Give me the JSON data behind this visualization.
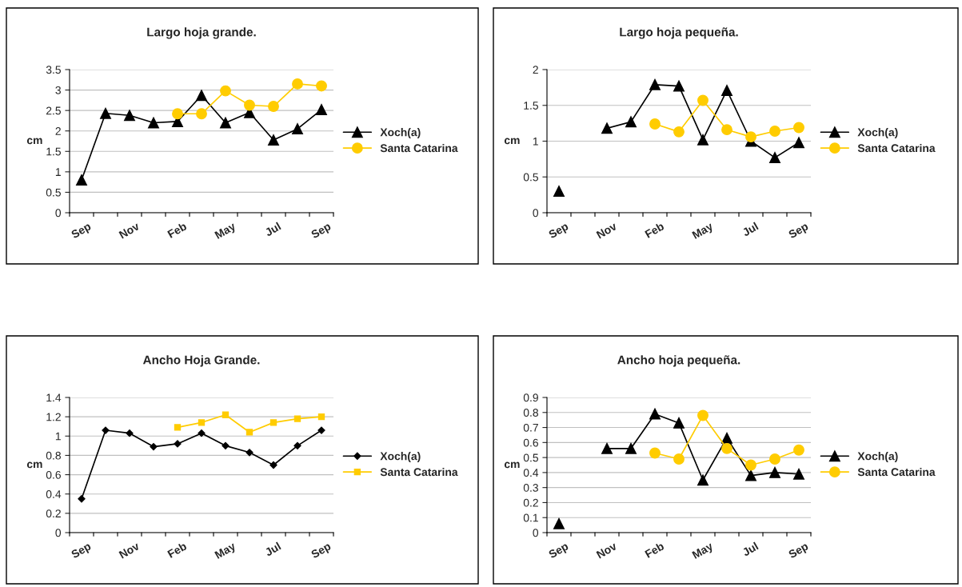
{
  "chart_data": [
    {
      "type": "line",
      "title": "Largo hoja grande.",
      "ylabel": "cm",
      "categories": [
        "Sep",
        null,
        "Nov",
        null,
        "Feb",
        null,
        "May",
        null,
        "Jul",
        null,
        "Sep"
      ],
      "ylim": [
        0,
        3.5
      ],
      "yticks": [
        0,
        0.5,
        1,
        1.5,
        2,
        2.5,
        3,
        3.5
      ],
      "grid": "y",
      "legend": "right",
      "series": [
        {
          "name": "Xoch(a)",
          "color": "#000000",
          "marker": "triangle",
          "values": [
            0.8,
            2.43,
            2.38,
            2.2,
            2.23,
            2.87,
            2.2,
            2.45,
            1.78,
            2.05,
            2.52
          ]
        },
        {
          "name": "Santa Catarina",
          "color": "#ffcc00",
          "marker": "circle",
          "values": [
            null,
            null,
            null,
            null,
            2.42,
            2.42,
            2.98,
            2.63,
            2.6,
            3.15,
            3.1
          ]
        }
      ]
    },
    {
      "type": "line",
      "title": "Largo hoja pequeña.",
      "ylabel": "cm",
      "categories": [
        "Sep",
        null,
        "Nov",
        null,
        "Feb",
        null,
        "May",
        null,
        "Jul",
        null,
        "Sep"
      ],
      "ylim": [
        0,
        2
      ],
      "yticks": [
        0,
        0.5,
        1,
        1.5,
        2
      ],
      "grid": "y",
      "legend": "right",
      "series": [
        {
          "name": "Xoch(a)",
          "color": "#000000",
          "marker": "triangle",
          "values": [
            0.3,
            null,
            1.18,
            1.27,
            1.79,
            1.77,
            1.02,
            1.71,
            1.0,
            0.77,
            0.98
          ]
        },
        {
          "name": "Santa Catarina",
          "color": "#ffcc00",
          "marker": "circle",
          "values": [
            null,
            null,
            null,
            null,
            1.24,
            1.13,
            1.57,
            1.16,
            1.06,
            1.14,
            1.19
          ]
        }
      ]
    },
    {
      "type": "line",
      "title": "Ancho Hoja Grande.",
      "ylabel": "cm",
      "categories": [
        "Sep",
        null,
        "Nov",
        null,
        "Feb",
        null,
        "May",
        null,
        "Jul",
        null,
        "Sep"
      ],
      "ylim": [
        0,
        1.4
      ],
      "yticks": [
        0,
        0.2,
        0.4,
        0.6,
        0.8,
        1,
        1.2,
        1.4
      ],
      "grid": "y",
      "legend": "right",
      "series": [
        {
          "name": "Xoch(a)",
          "color": "#000000",
          "marker": "diamond",
          "values": [
            0.35,
            1.06,
            1.03,
            0.89,
            0.92,
            1.03,
            0.9,
            0.83,
            0.7,
            0.9,
            1.06
          ]
        },
        {
          "name": "Santa Catarina",
          "color": "#ffcc00",
          "marker": "square",
          "values": [
            null,
            null,
            null,
            null,
            1.09,
            1.14,
            1.22,
            1.04,
            1.14,
            1.18,
            1.2
          ]
        }
      ]
    },
    {
      "type": "line",
      "title": "Ancho hoja pequeña.",
      "ylabel": "cm",
      "categories": [
        "Sep",
        null,
        "Nov",
        null,
        "Feb",
        null,
        "May",
        null,
        "Jul",
        null,
        "Sep"
      ],
      "ylim": [
        0,
        0.9
      ],
      "yticks": [
        0,
        0.1,
        0.2,
        0.3,
        0.4,
        0.5,
        0.6,
        0.7,
        0.8,
        0.9
      ],
      "grid": "y",
      "legend": "right",
      "series": [
        {
          "name": "Xoch(a)",
          "color": "#000000",
          "marker": "triangle",
          "values": [
            0.06,
            null,
            0.56,
            0.56,
            0.79,
            0.73,
            0.35,
            0.63,
            0.38,
            0.4,
            0.39
          ]
        },
        {
          "name": "Santa Catarina",
          "color": "#ffcc00",
          "marker": "circle",
          "values": [
            null,
            null,
            null,
            null,
            0.53,
            0.49,
            0.78,
            0.56,
            0.45,
            0.49,
            0.55
          ]
        }
      ]
    }
  ]
}
